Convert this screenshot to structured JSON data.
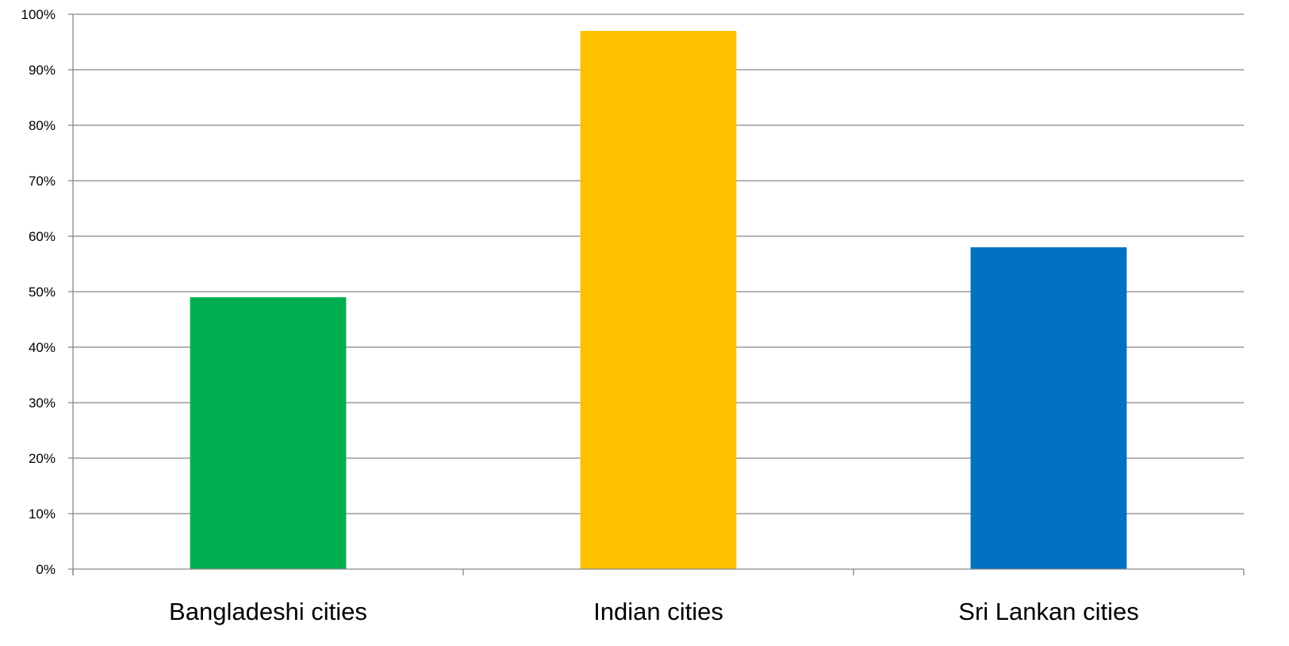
{
  "chart_data": {
    "type": "bar",
    "categories": [
      "Bangladeshi cities",
      "Indian cities",
      "Sri Lankan cities"
    ],
    "values": [
      49,
      97,
      58
    ],
    "colors": [
      "#00b050",
      "#ffc000",
      "#0070c0"
    ],
    "ylim": [
      0,
      100
    ],
    "y_ticks": [
      0,
      10,
      20,
      30,
      40,
      50,
      60,
      70,
      80,
      90,
      100
    ],
    "y_tick_format": "percent",
    "grid": true,
    "legend": "none",
    "title": "",
    "xlabel": "",
    "ylabel": ""
  }
}
